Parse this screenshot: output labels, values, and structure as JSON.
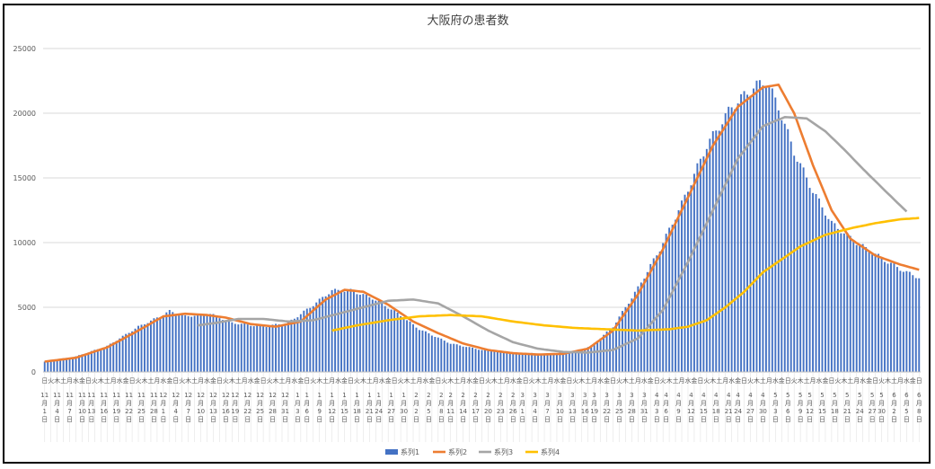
{
  "chart_data": {
    "type": "bar",
    "title": "大阪府の患者数",
    "ylim": [
      0,
      25000
    ],
    "yticks": [
      0,
      5000,
      10000,
      15000,
      20000,
      25000
    ],
    "grid": true,
    "legend_position": "bottom",
    "x_tick_labels": [
      "11月1日",
      "11月4日",
      "11月7日",
      "11月10日",
      "11月13日",
      "11月16日",
      "11月19日",
      "11月22日",
      "11月25日",
      "11月28日",
      "12月1日",
      "12月4日",
      "12月7日",
      "12月10日",
      "12月13日",
      "12月16日",
      "12月19日",
      "12月22日",
      "12月25日",
      "12月28日",
      "12月31日",
      "1月3日",
      "1月6日",
      "1月9日",
      "1月12日",
      "1月15日",
      "1月18日",
      "1月21日",
      "1月24日",
      "1月27日",
      "1月30日",
      "2月2日",
      "2月5日",
      "2月8日",
      "2月11日",
      "2月14日",
      "2月17日",
      "2月20日",
      "2月23日",
      "2月26日",
      "3月1日",
      "3月4日",
      "3月7日",
      "3月10日",
      "3月13日",
      "3月16日",
      "3月19日",
      "3月22日",
      "3月25日",
      "3月28日",
      "3月31日",
      "4月3日",
      "4月6日",
      "4月9日",
      "4月12日",
      "4月15日",
      "4月18日",
      "4月21日",
      "4月24日",
      "4月27日",
      "4月30日",
      "5月3日",
      "5月6日",
      "5月9日",
      "5月12日",
      "5月15日",
      "5月18日",
      "5月21日",
      "5月24日",
      "5月27日",
      "5月30日",
      "6月2日",
      "6月5日",
      "6月8日"
    ],
    "x_weekday_labels": [
      "日",
      "火",
      "木",
      "土",
      "月",
      "水",
      "金",
      "日",
      "火",
      "木",
      "土",
      "月",
      "水",
      "金",
      "日",
      "火",
      "木",
      "土",
      "月",
      "水",
      "金",
      "日",
      "火",
      "木",
      "土",
      "月",
      "水",
      "金",
      "日",
      "火",
      "木",
      "土",
      "月",
      "水",
      "金",
      "日",
      "火",
      "木",
      "土",
      "月",
      "水",
      "金",
      "日",
      "火",
      "木",
      "土",
      "月",
      "水",
      "金",
      "日",
      "火",
      "木",
      "土",
      "月",
      "水",
      "金",
      "日",
      "火",
      "木",
      "土",
      "月",
      "水",
      "金",
      "日",
      "火",
      "木",
      "土",
      "月",
      "水",
      "金",
      "日",
      "火",
      "木",
      "土",
      "月",
      "水",
      "金",
      "日",
      "火",
      "木",
      "土",
      "月",
      "水",
      "金",
      "日",
      "火",
      "木",
      "土",
      "月",
      "水",
      "金",
      "日",
      "火",
      "木",
      "土",
      "月",
      "水",
      "金",
      "日",
      "火",
      "木",
      "土",
      "月",
      "水",
      "金",
      "日",
      "火",
      "木",
      "土",
      "月",
      "水",
      "金",
      "日",
      "火",
      "木",
      "土",
      "月",
      "水",
      "金",
      "日",
      "火",
      "木",
      "土",
      "月",
      "水",
      "金",
      "日",
      "火",
      "木",
      "土",
      "月",
      "水",
      "金",
      "日",
      "火",
      "木",
      "土",
      "月",
      "水",
      "金",
      "日",
      "火",
      "木",
      "土",
      "月",
      "水",
      "金",
      "日",
      "火",
      "木",
      "土",
      "月",
      "水",
      "金",
      "日",
      "火",
      "木",
      "土",
      "月",
      "水",
      "金",
      "日",
      "火",
      "木",
      "土",
      "月",
      "水",
      "金",
      "日",
      "火",
      "木",
      "土",
      "月",
      "水",
      "金",
      "日",
      "火",
      "木",
      "土",
      "月",
      "水",
      "金",
      "日",
      "火",
      "木",
      "土",
      "月",
      "水",
      "金",
      "日",
      "火",
      "木",
      "土",
      "月",
      "水",
      "金",
      "日",
      "火",
      "木",
      "土",
      "月",
      "水"
    ],
    "bar_keyframes": [
      [
        0,
        800
      ],
      [
        10,
        1200
      ],
      [
        20,
        2000
      ],
      [
        30,
        3500
      ],
      [
        37,
        4300
      ],
      [
        40,
        4700
      ],
      [
        45,
        4300
      ],
      [
        53,
        4500
      ],
      [
        60,
        3800
      ],
      [
        70,
        3500
      ],
      [
        78,
        3800
      ],
      [
        85,
        5000
      ],
      [
        92,
        6300
      ],
      [
        98,
        6300
      ],
      [
        105,
        5700
      ],
      [
        112,
        4700
      ],
      [
        120,
        3300
      ],
      [
        130,
        2200
      ],
      [
        140,
        1700
      ],
      [
        150,
        1500
      ],
      [
        160,
        1400
      ],
      [
        168,
        1500
      ],
      [
        175,
        2000
      ],
      [
        182,
        3500
      ],
      [
        190,
        6500
      ],
      [
        197,
        9500
      ],
      [
        204,
        13000
      ],
      [
        212,
        17500
      ],
      [
        220,
        20500
      ],
      [
        227,
        22000
      ],
      [
        231,
        22500
      ],
      [
        235,
        20500
      ],
      [
        240,
        17000
      ],
      [
        246,
        14000
      ],
      [
        252,
        11500
      ],
      [
        260,
        10000
      ],
      [
        270,
        8500
      ],
      [
        276,
        7700
      ],
      [
        280,
        7300
      ]
    ],
    "bar_count": 281,
    "series": [
      {
        "name": "系列1",
        "kind": "bar",
        "color": "#4472C4"
      },
      {
        "name": "系列2",
        "kind": "line",
        "color": "#ED7D31",
        "points": [
          [
            0,
            800
          ],
          [
            10,
            1100
          ],
          [
            20,
            1900
          ],
          [
            30,
            3200
          ],
          [
            38,
            4300
          ],
          [
            45,
            4500
          ],
          [
            52,
            4400
          ],
          [
            58,
            4200
          ],
          [
            66,
            3700
          ],
          [
            74,
            3500
          ],
          [
            82,
            3900
          ],
          [
            90,
            5600
          ],
          [
            96,
            6350
          ],
          [
            102,
            6200
          ],
          [
            110,
            5200
          ],
          [
            118,
            3900
          ],
          [
            126,
            3000
          ],
          [
            134,
            2200
          ],
          [
            142,
            1700
          ],
          [
            150,
            1450
          ],
          [
            158,
            1350
          ],
          [
            166,
            1400
          ],
          [
            174,
            1800
          ],
          [
            182,
            3200
          ],
          [
            190,
            6000
          ],
          [
            198,
            9500
          ],
          [
            206,
            13500
          ],
          [
            214,
            17500
          ],
          [
            222,
            20500
          ],
          [
            230,
            22000
          ],
          [
            235,
            22200
          ],
          [
            240,
            20000
          ],
          [
            246,
            16000
          ],
          [
            252,
            12500
          ],
          [
            258,
            10300
          ],
          [
            266,
            9000
          ],
          [
            274,
            8300
          ],
          [
            280,
            7900
          ]
        ]
      },
      {
        "name": "系列3",
        "kind": "line",
        "color": "#A5A5A5",
        "points": [
          [
            49,
            3600
          ],
          [
            55,
            3800
          ],
          [
            62,
            4100
          ],
          [
            70,
            4100
          ],
          [
            78,
            3900
          ],
          [
            86,
            4000
          ],
          [
            94,
            4500
          ],
          [
            102,
            5000
          ],
          [
            110,
            5500
          ],
          [
            118,
            5600
          ],
          [
            126,
            5300
          ],
          [
            134,
            4300
          ],
          [
            142,
            3200
          ],
          [
            150,
            2300
          ],
          [
            158,
            1800
          ],
          [
            166,
            1550
          ],
          [
            174,
            1500
          ],
          [
            182,
            1700
          ],
          [
            190,
            2600
          ],
          [
            198,
            4800
          ],
          [
            206,
            8500
          ],
          [
            214,
            12500
          ],
          [
            222,
            16500
          ],
          [
            230,
            19000
          ],
          [
            237,
            19700
          ],
          [
            244,
            19600
          ],
          [
            250,
            18600
          ],
          [
            256,
            17200
          ],
          [
            262,
            15700
          ],
          [
            270,
            13800
          ],
          [
            276,
            12400
          ]
        ]
      },
      {
        "name": "系列4",
        "kind": "line",
        "color": "#FFC000",
        "points": [
          [
            92,
            3200
          ],
          [
            100,
            3600
          ],
          [
            110,
            4000
          ],
          [
            120,
            4300
          ],
          [
            130,
            4400
          ],
          [
            140,
            4300
          ],
          [
            150,
            3900
          ],
          [
            160,
            3600
          ],
          [
            170,
            3400
          ],
          [
            180,
            3300
          ],
          [
            190,
            3200
          ],
          [
            200,
            3300
          ],
          [
            206,
            3500
          ],
          [
            212,
            4000
          ],
          [
            218,
            5000
          ],
          [
            224,
            6200
          ],
          [
            230,
            7700
          ],
          [
            236,
            8700
          ],
          [
            242,
            9700
          ],
          [
            250,
            10600
          ],
          [
            258,
            11100
          ],
          [
            266,
            11500
          ],
          [
            274,
            11800
          ],
          [
            280,
            11900
          ]
        ]
      }
    ]
  }
}
